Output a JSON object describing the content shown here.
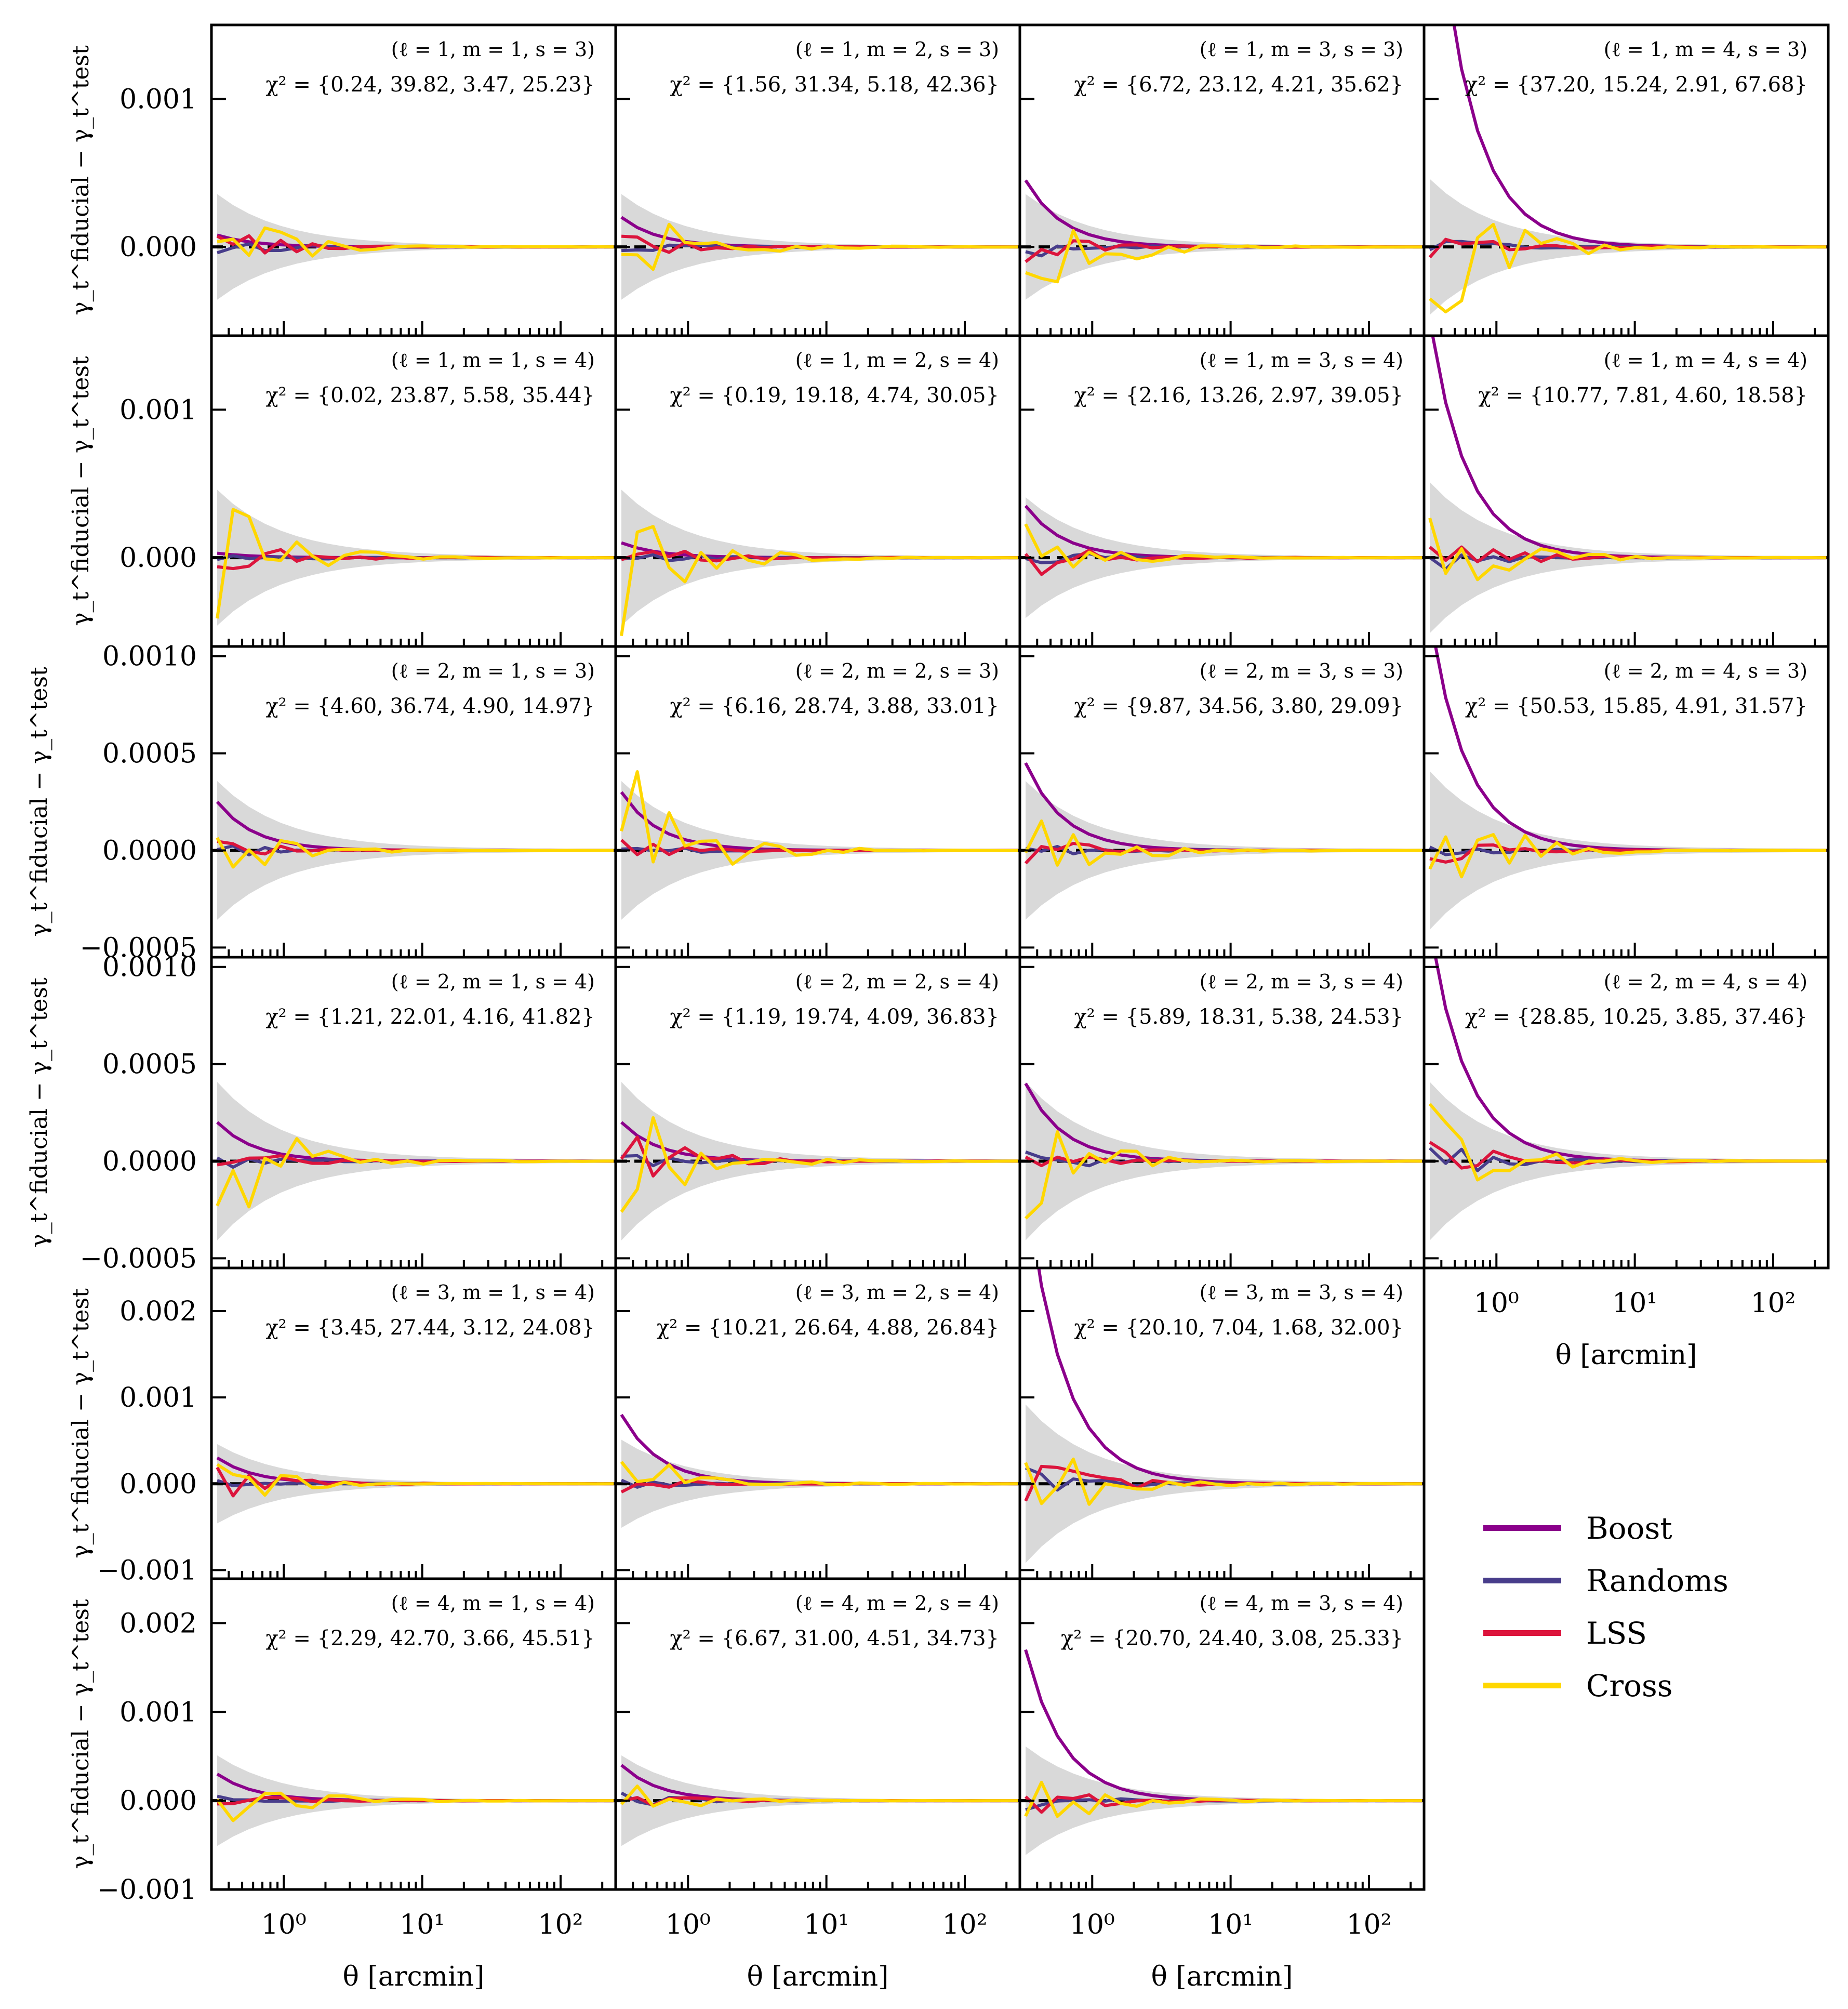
{
  "chart_data": {
    "type": "line",
    "layout": "grid",
    "x_scale": "log",
    "xlim": [
      0.3,
      250
    ],
    "xlabel": "θ [arcmin]",
    "ylabel": "γ_t^fiducial − γ_t^test",
    "x_tick_labels": [
      "10^0",
      "10^1",
      "10^2"
    ],
    "x_ticks": [
      1,
      10,
      100
    ],
    "x_bins": [
      0.33,
      0.43,
      0.56,
      0.73,
      0.95,
      1.24,
      1.61,
      2.1,
      2.73,
      3.56,
      4.63,
      6.03,
      7.85,
      10.2,
      13.3,
      17.3,
      22.6,
      29.4,
      38.2,
      49.8,
      64.8,
      84.4,
      110,
      143,
      186,
      242
    ],
    "legend": {
      "placement": "right-lower",
      "entries": [
        {
          "name": "Boost",
          "color": "#8B008B"
        },
        {
          "name": "Randoms",
          "color": "#483D8B"
        },
        {
          "name": "LSS",
          "color": "#DC143C"
        },
        {
          "name": "Cross",
          "color": "#FFD700"
        }
      ]
    },
    "band_color": "#D9D9D9",
    "zero_line": {
      "value": 0,
      "style": "dashed",
      "color": "#000000"
    },
    "rows": [
      {
        "ylim": [
          -0.0006,
          0.0015
        ],
        "yticks": [
          0.0,
          0.001
        ],
        "ytick_labels": [
          "0.000",
          "0.001"
        ]
      },
      {
        "ylim": [
          -0.0006,
          0.0015
        ],
        "yticks": [
          0.0,
          0.001
        ],
        "ytick_labels": [
          "0.000",
          "0.001"
        ]
      },
      {
        "ylim": [
          -0.00055,
          0.00105
        ],
        "yticks": [
          -0.0005,
          0.0,
          0.0005,
          0.001
        ],
        "ytick_labels": [
          "−0.0005",
          "0.0000",
          "0.0005",
          "0.0010"
        ]
      },
      {
        "ylim": [
          -0.00055,
          0.00105
        ],
        "yticks": [
          -0.0005,
          0.0,
          0.0005,
          0.001
        ],
        "ytick_labels": [
          "−0.0005",
          "0.0000",
          "0.0005",
          "0.0010"
        ]
      },
      {
        "ylim": [
          -0.0011,
          0.0025
        ],
        "yticks": [
          -0.001,
          0.0,
          0.001,
          0.002
        ],
        "ytick_labels": [
          "−0.001",
          "0.000",
          "0.001",
          "0.002"
        ]
      },
      {
        "ylim": [
          -0.001,
          0.0025
        ],
        "yticks": [
          -0.001,
          0.0,
          0.001,
          0.002
        ],
        "ytick_labels": [
          "−0.001",
          "0.000",
          "0.001",
          "0.002"
        ]
      }
    ],
    "panels": [
      {
        "row": 0,
        "col": 0,
        "label": "(ℓ = 1, m = 1, s = 3)",
        "chi2": "χ² = {0.24, 39.82, 3.47, 25.23}",
        "boost_amp": 8e-05,
        "band_amp": 0.00035,
        "noise": {
          "Randoms": 7e-05,
          "LSS": 0.00012,
          "Cross": 0.00028
        }
      },
      {
        "row": 0,
        "col": 1,
        "label": "(ℓ = 1, m = 2, s = 3)",
        "chi2": "χ² = {1.56, 31.34, 5.18, 42.36}",
        "boost_amp": 0.0002,
        "band_amp": 0.00035,
        "noise": {
          "Randoms": 5e-05,
          "LSS": 8e-05,
          "Cross": 0.00045
        }
      },
      {
        "row": 0,
        "col": 2,
        "label": "(ℓ = 1, m = 3, s = 3)",
        "chi2": "χ² = {6.72, 23.12, 4.21, 35.62}",
        "boost_amp": 0.00045,
        "band_amp": 0.00035,
        "noise": {
          "Randoms": 8e-05,
          "LSS": 0.0001,
          "Cross": 0.0005
        }
      },
      {
        "row": 0,
        "col": 3,
        "label": "(ℓ = 1, m = 4, s = 3)",
        "chi2": "χ² = {37.20, 15.24, 2.91, 67.68}",
        "boost_amp": 0.0028,
        "band_amp": 0.00045,
        "noise": {
          "Randoms": 6e-05,
          "LSS": 0.0001,
          "Cross": 0.0006
        }
      },
      {
        "row": 1,
        "col": 0,
        "label": "(ℓ = 1, m = 1, s = 4)",
        "chi2": "χ² = {0.02, 23.87, 5.58, 35.44}",
        "boost_amp": 3e-05,
        "band_amp": 0.00045,
        "noise": {
          "Randoms": 5e-05,
          "LSS": 0.00015,
          "Cross": 0.0005
        }
      },
      {
        "row": 1,
        "col": 1,
        "label": "(ℓ = 1, m = 2, s = 4)",
        "chi2": "χ² = {0.19, 19.18, 4.74, 30.05}",
        "boost_amp": 0.0001,
        "band_amp": 0.00045,
        "noise": {
          "Randoms": 5e-05,
          "LSS": 0.00012,
          "Cross": 0.0005
        }
      },
      {
        "row": 1,
        "col": 2,
        "label": "(ℓ = 1, m = 3, s = 4)",
        "chi2": "χ² = {2.16, 13.26, 2.97, 39.05}",
        "boost_amp": 0.00035,
        "band_amp": 0.0004,
        "noise": {
          "Randoms": 8e-05,
          "LSS": 0.00014,
          "Cross": 0.00025
        }
      },
      {
        "row": 1,
        "col": 3,
        "label": "(ℓ = 1, m = 4, s = 4)",
        "chi2": "χ² = {10.77, 7.81, 4.60, 18.58}",
        "boost_amp": 0.0016,
        "band_amp": 0.0005,
        "noise": {
          "Randoms": 0.0001,
          "LSS": 0.00015,
          "Cross": 0.0004
        }
      },
      {
        "row": 2,
        "col": 0,
        "label": "(ℓ = 2, m = 1, s = 3)",
        "chi2": "χ² = {4.60, 36.74, 4.90, 14.97}",
        "boost_amp": 0.00025,
        "band_amp": 0.00035,
        "noise": {
          "Randoms": 4e-05,
          "LSS": 6e-05,
          "Cross": 0.00015
        }
      },
      {
        "row": 2,
        "col": 1,
        "label": "(ℓ = 2, m = 2, s = 3)",
        "chi2": "χ² = {6.16, 28.74, 3.88, 33.01}",
        "boost_amp": 0.0003,
        "band_amp": 0.00035,
        "noise": {
          "Randoms": 4e-05,
          "LSS": 5e-05,
          "Cross": 0.0005
        }
      },
      {
        "row": 2,
        "col": 2,
        "label": "(ℓ = 2, m = 3, s = 3)",
        "chi2": "χ² = {9.87, 34.56, 3.80, 29.09}",
        "boost_amp": 0.00045,
        "band_amp": 0.00035,
        "noise": {
          "Randoms": 4e-05,
          "LSS": 8e-05,
          "Cross": 0.0003
        }
      },
      {
        "row": 2,
        "col": 3,
        "label": "(ℓ = 2, m = 4, s = 3)",
        "chi2": "χ² = {50.53, 15.85, 4.91, 31.57}",
        "boost_amp": 0.0012,
        "band_amp": 0.0004,
        "noise": {
          "Randoms": 5e-05,
          "LSS": 8e-05,
          "Cross": 0.00035
        }
      },
      {
        "row": 3,
        "col": 0,
        "label": "(ℓ = 2, m = 1, s = 4)",
        "chi2": "χ² = {1.21, 22.01, 4.16, 41.82}",
        "boost_amp": 0.0002,
        "band_amp": 0.0004,
        "noise": {
          "Randoms": 4e-05,
          "LSS": 8e-05,
          "Cross": 0.00045
        }
      },
      {
        "row": 3,
        "col": 1,
        "label": "(ℓ = 2, m = 2, s = 4)",
        "chi2": "χ² = {1.19, 19.74, 4.09, 36.83}",
        "boost_amp": 0.0002,
        "band_amp": 0.0004,
        "noise": {
          "Randoms": 5e-05,
          "LSS": 0.0002,
          "Cross": 0.00035
        }
      },
      {
        "row": 3,
        "col": 2,
        "label": "(ℓ = 2, m = 3, s = 4)",
        "chi2": "χ² = {5.89, 18.31, 5.38, 24.53}",
        "boost_amp": 0.0004,
        "band_amp": 0.0004,
        "noise": {
          "Randoms": 8e-05,
          "LSS": 6e-05,
          "Cross": 0.0003
        }
      },
      {
        "row": 3,
        "col": 3,
        "label": "(ℓ = 2, m = 4, s = 4)",
        "chi2": "χ² = {28.85, 10.25, 3.85, 37.46}",
        "boost_amp": 0.0012,
        "band_amp": 0.0004,
        "noise": {
          "Randoms": 0.0001,
          "LSS": 0.00015,
          "Cross": 0.0003
        }
      },
      {
        "row": 4,
        "col": 0,
        "label": "(ℓ = 3, m = 1, s = 4)",
        "chi2": "χ² = {3.45, 27.44, 3.12, 24.08}",
        "boost_amp": 0.0003,
        "band_amp": 0.00045,
        "noise": {
          "Randoms": 5e-05,
          "LSS": 0.0002,
          "Cross": 0.0003
        }
      },
      {
        "row": 4,
        "col": 1,
        "label": "(ℓ = 3, m = 2, s = 4)",
        "chi2": "χ² = {10.21, 26.64, 4.88, 26.84}",
        "boost_amp": 0.0008,
        "band_amp": 0.0005,
        "noise": {
          "Randoms": 5e-05,
          "LSS": 0.0001,
          "Cross": 0.0005
        }
      },
      {
        "row": 4,
        "col": 2,
        "label": "(ℓ = 3, m = 3, s = 4)",
        "chi2": "χ² = {20.10, 7.04, 1.68, 32.00}",
        "boost_amp": 0.0035,
        "band_amp": 0.0009,
        "noise": {
          "Randoms": 0.0002,
          "LSS": 0.0003,
          "Cross": 0.0009
        }
      },
      {
        "row": 5,
        "col": 0,
        "label": "(ℓ = 4, m = 1, s = 4)",
        "chi2": "χ² = {2.29, 42.70, 3.66, 45.51}",
        "boost_amp": 0.0003,
        "band_amp": 0.0005,
        "noise": {
          "Randoms": 5e-05,
          "LSS": 0.0001,
          "Cross": 0.0004
        }
      },
      {
        "row": 5,
        "col": 1,
        "label": "(ℓ = 4, m = 2, s = 4)",
        "chi2": "χ² = {6.67, 31.00, 4.51, 34.73}",
        "boost_amp": 0.0004,
        "band_amp": 0.0005,
        "noise": {
          "Randoms": 8e-05,
          "LSS": 0.0001,
          "Cross": 0.0002
        }
      },
      {
        "row": 5,
        "col": 2,
        "label": "(ℓ = 4, m = 3, s = 4)",
        "chi2": "χ² = {20.70, 24.40, 3.08, 25.33}",
        "boost_amp": 0.0017,
        "band_amp": 0.0006,
        "noise": {
          "Randoms": 0.0001,
          "LSS": 0.0002,
          "Cross": 0.0004
        }
      }
    ]
  }
}
